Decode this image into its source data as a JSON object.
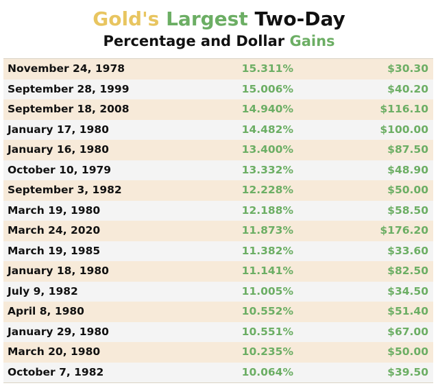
{
  "colors": {
    "gold": "#e8c560",
    "green": "#6cae64",
    "text_dark": "#111111",
    "row_odd": "#f7ead9",
    "row_even": "#f4f4f4"
  },
  "chart_data": {
    "type": "table",
    "title_parts": {
      "gold": "Gold's",
      "largest": "Largest",
      "two_day": "Two-Day"
    },
    "subtitle_parts": {
      "main": "Percentage and Dollar",
      "gains": "Gains"
    },
    "rows": [
      {
        "date": "November 24, 1978",
        "percent": "15.311%",
        "dollar": "$30.30"
      },
      {
        "date": "September 28, 1999",
        "percent": "15.006%",
        "dollar": "$40.20"
      },
      {
        "date": "September 18, 2008",
        "percent": "14.940%",
        "dollar": "$116.10"
      },
      {
        "date": "January 17, 1980",
        "percent": "14.482%",
        "dollar": "$100.00"
      },
      {
        "date": "January 16, 1980",
        "percent": "13.400%",
        "dollar": "$87.50"
      },
      {
        "date": "October 10, 1979",
        "percent": "13.332%",
        "dollar": "$48.90"
      },
      {
        "date": "September 3, 1982",
        "percent": "12.228%",
        "dollar": "$50.00"
      },
      {
        "date": "March 19, 1980",
        "percent": "12.188%",
        "dollar": "$58.50"
      },
      {
        "date": "March 24, 2020",
        "percent": "11.873%",
        "dollar": "$176.20"
      },
      {
        "date": "March 19, 1985",
        "percent": "11.382%",
        "dollar": "$33.60"
      },
      {
        "date": "January 18, 1980",
        "percent": "11.141%",
        "dollar": "$82.50"
      },
      {
        "date": "July 9, 1982",
        "percent": "11.005%",
        "dollar": "$34.50"
      },
      {
        "date": "April 8, 1980",
        "percent": "10.552%",
        "dollar": "$51.40"
      },
      {
        "date": "January 29, 1980",
        "percent": "10.551%",
        "dollar": "$67.00"
      },
      {
        "date": "March 20, 1980",
        "percent": "10.235%",
        "dollar": "$50.00"
      },
      {
        "date": "October 7, 1982",
        "percent": "10.064%",
        "dollar": "$39.50"
      }
    ]
  }
}
